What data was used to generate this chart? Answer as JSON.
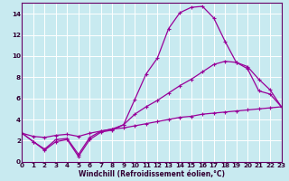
{
  "xlabel": "Windchill (Refroidissement éolien,°C)",
  "bg_color": "#c8eaf0",
  "grid_color": "#ffffff",
  "line_color": "#990099",
  "line1_x": [
    0,
    1,
    2,
    3,
    4,
    5,
    6,
    7,
    8,
    9,
    10,
    11,
    12,
    13,
    14,
    15,
    16,
    17,
    18,
    19,
    20,
    21,
    22,
    23
  ],
  "line1_y": [
    2.7,
    1.9,
    1.1,
    1.9,
    2.1,
    0.5,
    2.1,
    2.8,
    3.0,
    3.5,
    5.9,
    8.3,
    9.8,
    12.6,
    14.1,
    14.6,
    14.7,
    13.6,
    11.4,
    9.4,
    8.8,
    6.7,
    6.4,
    5.2
  ],
  "line2_x": [
    0,
    1,
    2,
    3,
    4,
    5,
    6,
    7,
    8,
    9,
    10,
    11,
    12,
    13,
    14,
    15,
    16,
    17,
    18,
    19,
    20,
    21,
    22,
    23
  ],
  "line2_y": [
    2.7,
    1.9,
    1.2,
    2.1,
    2.2,
    0.7,
    2.3,
    2.9,
    3.1,
    3.5,
    4.5,
    5.2,
    5.8,
    6.5,
    7.2,
    7.8,
    8.5,
    9.2,
    9.5,
    9.4,
    9.0,
    7.8,
    6.8,
    5.2
  ],
  "line3_x": [
    0,
    1,
    2,
    3,
    4,
    5,
    6,
    7,
    8,
    9,
    10,
    11,
    12,
    13,
    14,
    15,
    16,
    17,
    18,
    19,
    20,
    21,
    22,
    23
  ],
  "line3_y": [
    2.7,
    2.4,
    2.3,
    2.5,
    2.6,
    2.4,
    2.7,
    2.9,
    3.1,
    3.2,
    3.4,
    3.6,
    3.8,
    4.0,
    4.2,
    4.3,
    4.5,
    4.6,
    4.7,
    4.8,
    4.9,
    5.0,
    5.1,
    5.2
  ],
  "ylim": [
    0,
    15
  ],
  "xlim": [
    0,
    23
  ],
  "yticks": [
    0,
    2,
    4,
    6,
    8,
    10,
    12,
    14
  ],
  "xticks": [
    0,
    1,
    2,
    3,
    4,
    5,
    6,
    7,
    8,
    9,
    10,
    11,
    12,
    13,
    14,
    15,
    16,
    17,
    18,
    19,
    20,
    21,
    22,
    23
  ],
  "marker_size": 3,
  "linewidth": 0.9,
  "tick_labelsize": 5.2,
  "xlabel_fontsize": 5.5
}
